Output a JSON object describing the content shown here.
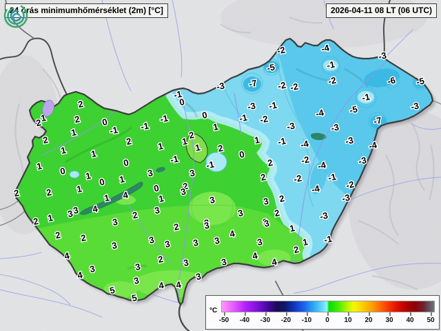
{
  "header": {
    "title": "24 órás minimumhőmérséklet (2m) [°C]",
    "datetime": "2026-04-11 08 LT (06 UTC)"
  },
  "legend": {
    "unit": "°C",
    "min": -50,
    "max": 50,
    "ticks": [
      -50,
      -40,
      -30,
      -20,
      -10,
      0,
      10,
      20,
      30,
      40,
      50
    ],
    "gradient": [
      [
        0,
        "#ff97ff"
      ],
      [
        5,
        "#ea5fff"
      ],
      [
        11,
        "#b321fb"
      ],
      [
        17,
        "#7b0fd6"
      ],
      [
        22,
        "#41099a"
      ],
      [
        26,
        "#1a0b52"
      ],
      [
        30,
        "#0d1870"
      ],
      [
        34,
        "#1134c0"
      ],
      [
        39,
        "#1c67ee"
      ],
      [
        43,
        "#2ea4f4"
      ],
      [
        47,
        "#5cd7f7"
      ],
      [
        49.6,
        "#97f1fa"
      ],
      [
        50.4,
        "#00e103"
      ],
      [
        55,
        "#4aec00"
      ],
      [
        59,
        "#b2f600"
      ],
      [
        62,
        "#f4f800"
      ],
      [
        66,
        "#fbd200"
      ],
      [
        71,
        "#fc9b00"
      ],
      [
        75,
        "#fc6400"
      ],
      [
        79,
        "#f53100"
      ],
      [
        83,
        "#db0d00"
      ],
      [
        87,
        "#b00000"
      ],
      [
        91,
        "#8c0303"
      ],
      [
        95,
        "#6f2230"
      ],
      [
        100,
        "#5e7a87"
      ]
    ]
  },
  "palette": {
    "warm_green": "#3bd22f",
    "warm_green_light": "#58dd34",
    "warm_green_lightest": "#78e74a",
    "cold_cyan_pale": "#b7eef9",
    "cold_cyan": "#7cd9f2",
    "cold_cyan_deep": "#58c9ed",
    "cold_cyan_dark": "#38bae6",
    "outside_gray": "#e3e4e6"
  },
  "stations": [
    [
      117,
      151,
      2
    ],
    [
      56,
      178,
      2
    ],
    [
      63,
      171,
      1
    ],
    [
      112,
      173,
      2
    ],
    [
      152,
      177,
      0
    ],
    [
      165,
      189,
      -1
    ],
    [
      107,
      192,
      1
    ],
    [
      66,
      203,
      2
    ],
    [
      187,
      205,
      2
    ],
    [
      92,
      218,
      1
    ],
    [
      136,
      223,
      1
    ],
    [
      57,
      241,
      1
    ],
    [
      183,
      236,
      0
    ],
    [
      91,
      248,
      0
    ],
    [
      128,
      255,
      1
    ],
    [
      148,
      264,
      0
    ],
    [
      177,
      260,
      1
    ],
    [
      24,
      280,
      2
    ],
    [
      71,
      279,
      2
    ],
    [
      115,
      274,
      1
    ],
    [
      155,
      287,
      1
    ],
    [
      182,
      283,
      4
    ],
    [
      102,
      310,
      3
    ],
    [
      110,
      305,
      3
    ],
    [
      138,
      303,
      4
    ],
    [
      73,
      316,
      1
    ],
    [
      52,
      321,
      2
    ],
    [
      196,
      312,
      2
    ],
    [
      167,
      322,
      3
    ],
    [
      84,
      341,
      2
    ],
    [
      121,
      345,
      2
    ],
    [
      166,
      356,
      3
    ],
    [
      97,
      371,
      4
    ],
    [
      134,
      390,
      3
    ],
    [
      116,
      399,
      4
    ],
    [
      200,
      387,
      3
    ],
    [
      198,
      407,
      3
    ],
    [
      163,
      421,
      5
    ],
    [
      195,
      432,
      5
    ],
    [
      258,
      137,
      -1
    ],
    [
      264,
      148,
      0
    ],
    [
      238,
      172,
      -1
    ],
    [
      210,
      183,
      -1
    ],
    [
      297,
      167,
      0
    ],
    [
      313,
      184,
      1
    ],
    [
      320,
      125,
      -3
    ],
    [
      367,
      121,
      -7
    ],
    [
      408,
      73,
      -2
    ],
    [
      393,
      98,
      -5
    ],
    [
      409,
      124,
      -2
    ],
    [
      427,
      126,
      -2
    ],
    [
      472,
      70,
      -4
    ],
    [
      555,
      81,
      -3
    ],
    [
      480,
      94,
      -1
    ],
    [
      482,
      117,
      -2
    ],
    [
      568,
      117,
      -6
    ],
    [
      610,
      118,
      -5
    ],
    [
      531,
      141,
      -1
    ],
    [
      602,
      154,
      -3
    ],
    [
      513,
      159,
      -5
    ],
    [
      464,
      164,
      -4
    ],
    [
      548,
      175,
      -7
    ],
    [
      422,
      183,
      -3
    ],
    [
      486,
      185,
      -3
    ],
    [
      365,
      154,
      -3
    ],
    [
      396,
      153,
      -1
    ],
    [
      353,
      171,
      -1
    ],
    [
      383,
      173,
      -2
    ],
    [
      278,
      196,
      2
    ],
    [
      268,
      205,
      1
    ],
    [
      233,
      212,
      1
    ],
    [
      287,
      214,
      1
    ],
    [
      320,
      215,
      2
    ],
    [
      373,
      203,
      1
    ],
    [
      409,
      205,
      -1
    ],
    [
      351,
      224,
      0
    ],
    [
      253,
      231,
      -1
    ],
    [
      305,
      239,
      -1
    ],
    [
      392,
      236,
      2
    ],
    [
      218,
      251,
      3
    ],
    [
      279,
      251,
      3
    ],
    [
      382,
      257,
      2
    ],
    [
      227,
      273,
      0
    ],
    [
      269,
      270,
      2
    ],
    [
      266,
      278,
      3
    ],
    [
      234,
      288,
      1
    ],
    [
      308,
      290,
      3
    ],
    [
      409,
      288,
      2
    ],
    [
      386,
      292,
      3
    ],
    [
      228,
      305,
      3
    ],
    [
      349,
      309,
      3
    ],
    [
      402,
      309,
      2
    ],
    [
      300,
      323,
      3
    ],
    [
      385,
      322,
      3
    ],
    [
      442,
      209,
      -4
    ],
    [
      507,
      204,
      -3
    ],
    [
      541,
      211,
      -4
    ],
    [
      443,
      232,
      -2
    ],
    [
      526,
      233,
      -3
    ],
    [
      467,
      240,
      -4
    ],
    [
      482,
      257,
      -1
    ],
    [
      432,
      259,
      -2
    ],
    [
      508,
      268,
      -2
    ],
    [
      458,
      274,
      -4
    ],
    [
      502,
      287,
      -3
    ],
    [
      470,
      313,
      -3
    ],
    [
      424,
      331,
      1
    ],
    [
      476,
      347,
      -1
    ],
    [
      443,
      351,
      1
    ],
    [
      430,
      362,
      2
    ],
    [
      256,
      329,
      2
    ],
    [
      300,
      327,
      3
    ],
    [
      387,
      324,
      3
    ],
    [
      337,
      339,
      4
    ],
    [
      220,
      348,
      3
    ],
    [
      243,
      354,
      3
    ],
    [
      284,
      352,
      3
    ],
    [
      315,
      349,
      3
    ],
    [
      377,
      351,
      3
    ],
    [
      233,
      376,
      2
    ],
    [
      370,
      371,
      4
    ],
    [
      270,
      381,
      3
    ],
    [
      325,
      380,
      3
    ],
    [
      398,
      380,
      4
    ],
    [
      288,
      401,
      3
    ],
    [
      234,
      414,
      4
    ],
    [
      259,
      413,
      4
    ]
  ]
}
